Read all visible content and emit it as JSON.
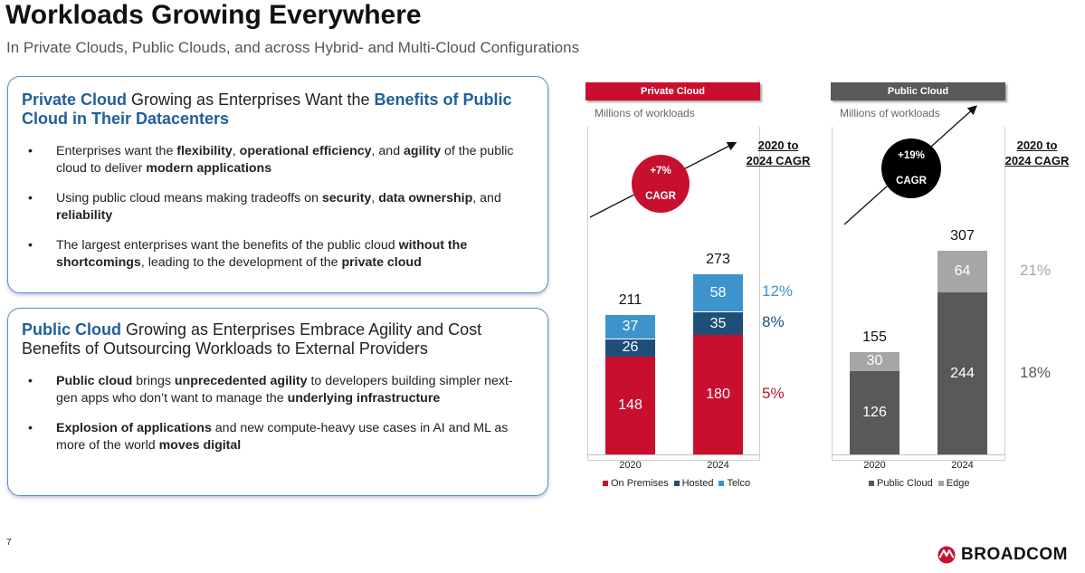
{
  "title": "Workloads Growing Everywhere",
  "subtitle": "In Private Clouds, Public Clouds, and across Hybrid- and Multi-Cloud Configurations",
  "card_private": {
    "heading_1": "Private Cloud",
    "heading_2": " Growing as Enterprises Want the ",
    "heading_3": "Benefits of Public Cloud in Their Datacenters",
    "bullets": [
      [
        [
          "Enterprises want the ",
          false
        ],
        [
          "flexibility",
          true
        ],
        [
          ", ",
          false
        ],
        [
          "operational efficiency",
          true
        ],
        [
          ", and ",
          false
        ],
        [
          "agility",
          true
        ],
        [
          " of the public cloud to deliver ",
          false
        ],
        [
          "modern applications",
          true
        ]
      ],
      [
        [
          "Using public cloud means making tradeoffs on ",
          false
        ],
        [
          "security",
          true
        ],
        [
          ", ",
          false
        ],
        [
          "data ownership",
          true
        ],
        [
          ", and ",
          false
        ],
        [
          "reliability",
          true
        ]
      ],
      [
        [
          "The largest enterprises want the benefits of the public cloud ",
          false
        ],
        [
          "without the shortcomings",
          true
        ],
        [
          ", leading to the development of the ",
          false
        ],
        [
          "private cloud",
          true
        ]
      ]
    ]
  },
  "card_public": {
    "heading_1": "Public Cloud",
    "heading_2": " Growing as Enterprises Embrace Agility and Cost Benefits of Outsourcing Workloads to External Providers",
    "bullets": [
      [
        [
          "Public cloud",
          true
        ],
        [
          " brings ",
          false
        ],
        [
          "unprecedented agility",
          true
        ],
        [
          " to developers building simpler next-gen apps who don’t want to manage the ",
          false
        ],
        [
          "underlying infrastructure",
          true
        ]
      ],
      [
        [
          "Explosion of applications",
          true
        ],
        [
          " and new compute-heavy use cases in AI and ML as more of the world ",
          false
        ],
        [
          "moves digital",
          true
        ]
      ]
    ]
  },
  "bullet_char": "•",
  "page_number": "7",
  "logo_text": "BROADCOM",
  "colors": {
    "brand_red": "#c8102e",
    "navy": "#1f4e79",
    "sky": "#3d94cc",
    "dark_gray": "#595959",
    "light_gray": "#a6a6a6"
  },
  "chart_data": [
    {
      "type": "bar",
      "stacked": true,
      "panel_title": "Private Cloud",
      "units_label": "Millions of workloads",
      "categories": [
        "2020",
        "2024"
      ],
      "series": [
        {
          "name": "On Premises",
          "values": [
            148,
            180
          ],
          "color": "#c8102e",
          "cagr": "5%"
        },
        {
          "name": "Hosted",
          "values": [
            26,
            35
          ],
          "color": "#1f4e79",
          "cagr": "8%"
        },
        {
          "name": "Telco",
          "values": [
            37,
            58
          ],
          "color": "#3d94cc",
          "cagr": "12%"
        }
      ],
      "totals": [
        211,
        273
      ],
      "overall_cagr": "+7%\nCAGR",
      "cagr_label": "2020 to\n2024 CAGR",
      "ylim": [
        0,
        320
      ],
      "legend": "bottom"
    },
    {
      "type": "bar",
      "stacked": true,
      "panel_title": "Public Cloud",
      "units_label": "Millions of workloads",
      "categories": [
        "2020",
        "2024"
      ],
      "series": [
        {
          "name": "Public Cloud",
          "values": [
            126,
            244
          ],
          "color": "#595959",
          "cagr": "18%"
        },
        {
          "name": "Edge",
          "values": [
            30,
            64
          ],
          "color": "#a6a6a6",
          "cagr": "21%"
        }
      ],
      "totals": [
        155,
        307
      ],
      "overall_cagr": "+19%\nCAGR",
      "cagr_label": "2020 to\n2024 CAGR",
      "ylim": [
        0,
        320
      ],
      "legend": "bottom"
    }
  ]
}
